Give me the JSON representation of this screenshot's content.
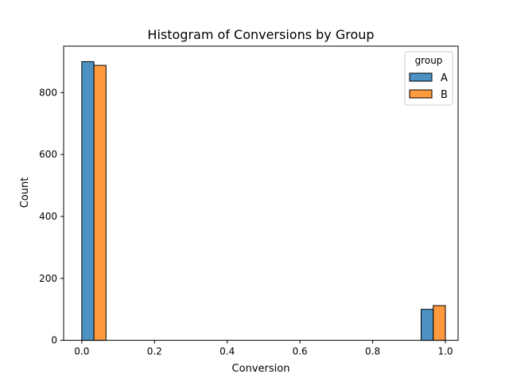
{
  "chart_data": {
    "type": "bar",
    "title": "Histogram of Conversions by Group",
    "xlabel": "Conversion",
    "ylabel": "Count",
    "xlim": [
      -0.05,
      1.035
    ],
    "ylim": [
      0,
      950
    ],
    "xticks": [
      "0.0",
      "0.2",
      "0.4",
      "0.6",
      "0.8",
      "1.0"
    ],
    "yticks": [
      "0",
      "200",
      "400",
      "600",
      "800"
    ],
    "bin_width": 0.0333,
    "legend": {
      "title": "group",
      "placement": "top-right"
    },
    "series": [
      {
        "name": "A",
        "color": "#4c92c3",
        "bins": [
          {
            "x_start": 0.0,
            "count": 900
          },
          {
            "x_start": 0.9333,
            "count": 100
          }
        ]
      },
      {
        "name": "B",
        "color": "#ff993e",
        "bins": [
          {
            "x_start": 0.0333,
            "count": 888
          },
          {
            "x_start": 0.9667,
            "count": 112
          }
        ]
      }
    ]
  }
}
